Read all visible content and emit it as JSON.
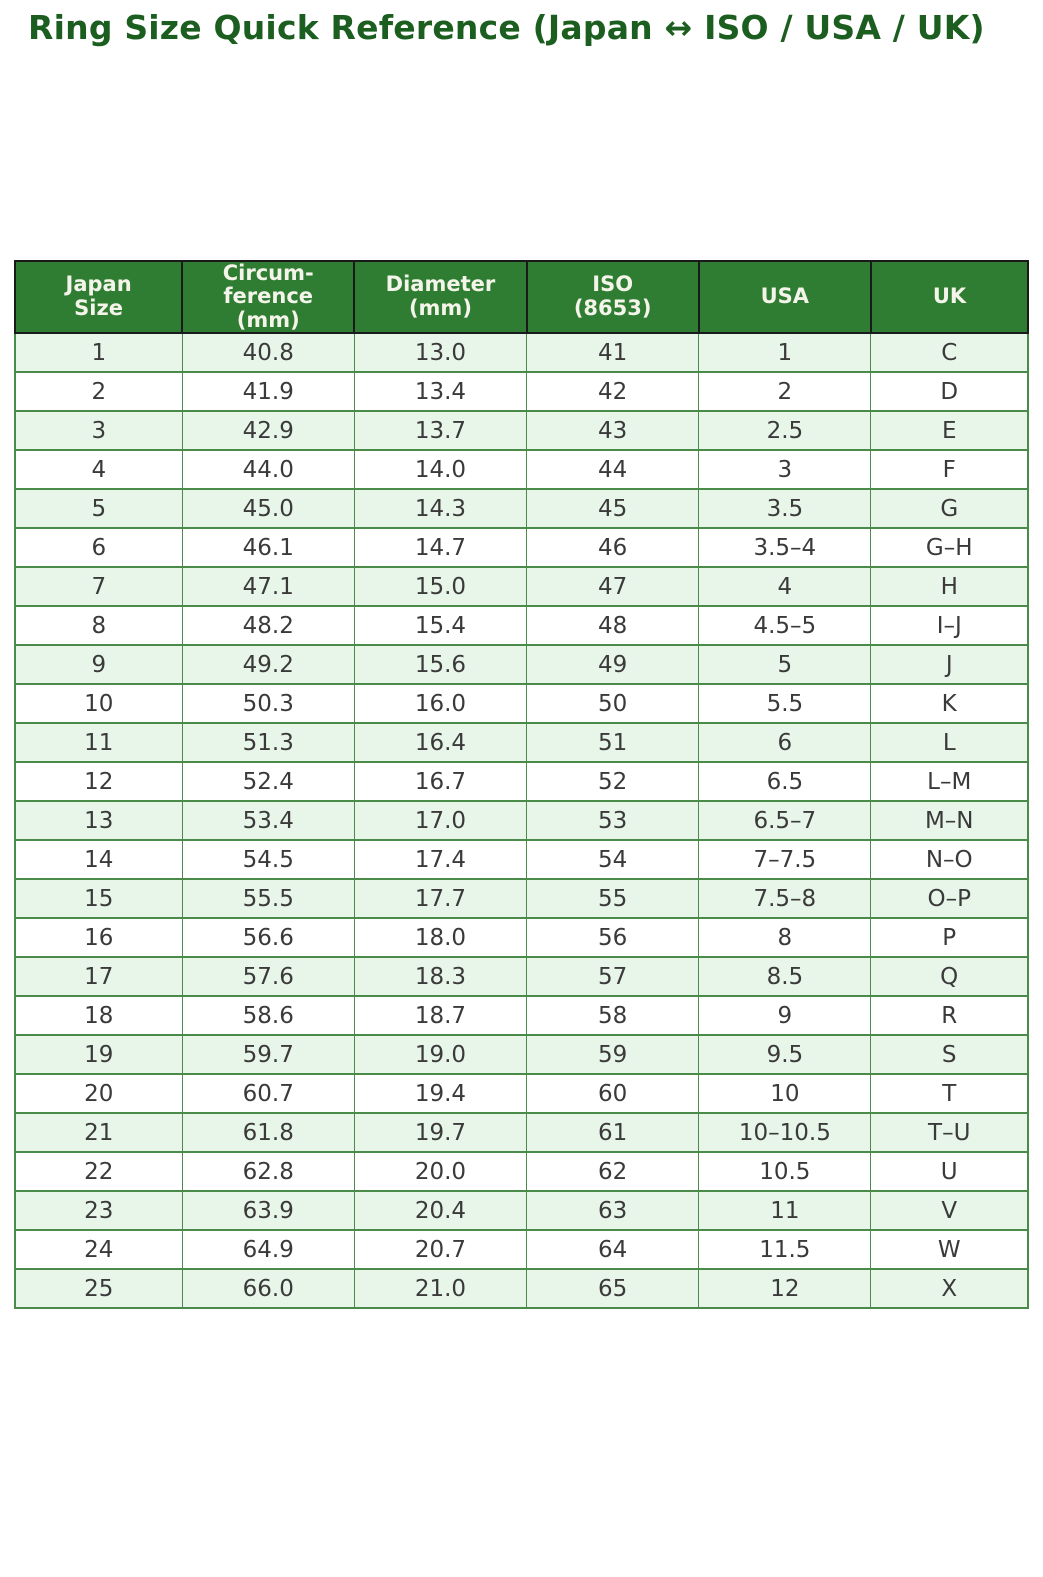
{
  "title": "Ring Size Quick Reference (Japan ↔ ISO / USA / UK)",
  "colors": {
    "title-color": "#1b5e20",
    "header-bg": "#2e7d32",
    "header-text": "#f5f4ea",
    "header-border": "#1a1a1a",
    "grid": "#4a8b49",
    "row-alt": "#e8f5e9",
    "row-base": "#ffffff",
    "cell-text": "#3a3a3a"
  },
  "chart_data": {
    "type": "table",
    "title": "Ring Size Quick Reference (Japan ↔ ISO / USA / UK)",
    "columns": [
      "Japan\nSize",
      "Circum-\nference\n(mm)",
      "Diameter\n(mm)",
      "ISO\n(8653)",
      "USA",
      "UK"
    ],
    "column_keys": [
      "japan-size",
      "circumference-mm",
      "diameter-mm",
      "iso-8653",
      "usa",
      "uk"
    ],
    "rows": [
      [
        "1",
        "40.8",
        "13.0",
        "41",
        "1",
        "C"
      ],
      [
        "2",
        "41.9",
        "13.4",
        "42",
        "2",
        "D"
      ],
      [
        "3",
        "42.9",
        "13.7",
        "43",
        "2.5",
        "E"
      ],
      [
        "4",
        "44.0",
        "14.0",
        "44",
        "3",
        "F"
      ],
      [
        "5",
        "45.0",
        "14.3",
        "45",
        "3.5",
        "G"
      ],
      [
        "6",
        "46.1",
        "14.7",
        "46",
        "3.5–4",
        "G–H"
      ],
      [
        "7",
        "47.1",
        "15.0",
        "47",
        "4",
        "H"
      ],
      [
        "8",
        "48.2",
        "15.4",
        "48",
        "4.5–5",
        "I–J"
      ],
      [
        "9",
        "49.2",
        "15.6",
        "49",
        "5",
        "J"
      ],
      [
        "10",
        "50.3",
        "16.0",
        "50",
        "5.5",
        "K"
      ],
      [
        "11",
        "51.3",
        "16.4",
        "51",
        "6",
        "L"
      ],
      [
        "12",
        "52.4",
        "16.7",
        "52",
        "6.5",
        "L–M"
      ],
      [
        "13",
        "53.4",
        "17.0",
        "53",
        "6.5–7",
        "M–N"
      ],
      [
        "14",
        "54.5",
        "17.4",
        "54",
        "7–7.5",
        "N–O"
      ],
      [
        "15",
        "55.5",
        "17.7",
        "55",
        "7.5–8",
        "O–P"
      ],
      [
        "16",
        "56.6",
        "18.0",
        "56",
        "8",
        "P"
      ],
      [
        "17",
        "57.6",
        "18.3",
        "57",
        "8.5",
        "Q"
      ],
      [
        "18",
        "58.6",
        "18.7",
        "58",
        "9",
        "R"
      ],
      [
        "19",
        "59.7",
        "19.0",
        "59",
        "9.5",
        "S"
      ],
      [
        "20",
        "60.7",
        "19.4",
        "60",
        "10",
        "T"
      ],
      [
        "21",
        "61.8",
        "19.7",
        "61",
        "10–10.5",
        "T–U"
      ],
      [
        "22",
        "62.8",
        "20.0",
        "62",
        "10.5",
        "U"
      ],
      [
        "23",
        "63.9",
        "20.4",
        "63",
        "11",
        "V"
      ],
      [
        "24",
        "64.9",
        "20.7",
        "64",
        "11.5",
        "W"
      ],
      [
        "25",
        "66.0",
        "21.0",
        "65",
        "12",
        "X"
      ]
    ]
  }
}
